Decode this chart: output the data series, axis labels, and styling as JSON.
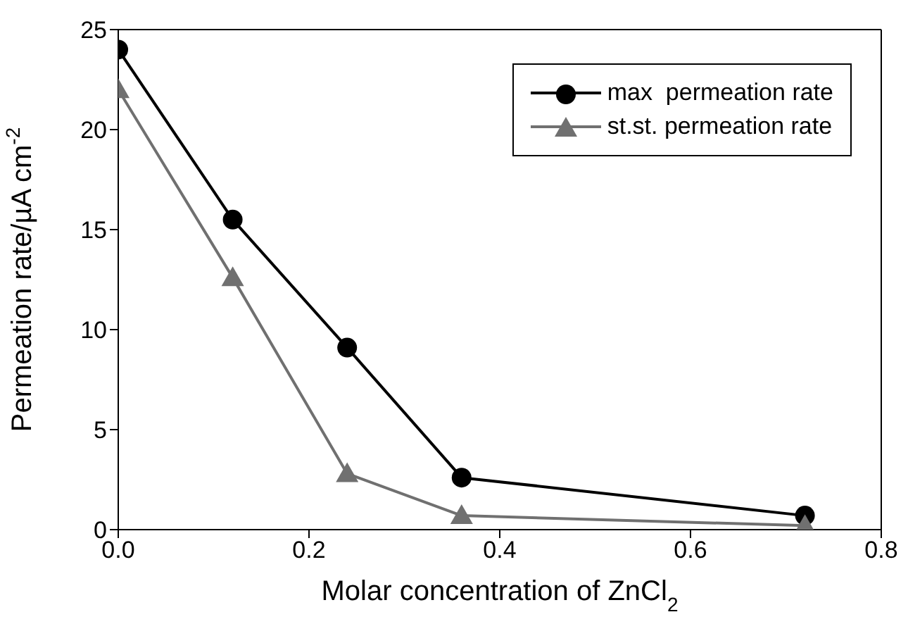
{
  "chart_data": {
    "type": "line",
    "xlabel": "Molar concentration of ZnCl$_{2}$",
    "ylabel": "Permeation rate/µA cm$^{-2}$",
    "x": [
      0,
      0.12,
      0.24,
      0.36,
      0.72
    ],
    "series": [
      {
        "name": "max  permeation rate",
        "color": "#000000",
        "marker": "circle",
        "values": [
          24,
          15.5,
          9.1,
          2.6,
          0.7
        ]
      },
      {
        "name": "st.st. permeation rate",
        "color": "#707070",
        "marker": "triangle",
        "values": [
          22,
          12.6,
          2.8,
          0.7,
          0.2
        ]
      }
    ],
    "xlim": [
      0,
      0.8
    ],
    "xticks": [
      {
        "value": 0,
        "label": "0.0"
      },
      0.2,
      0.4,
      0.6,
      0.8
    ],
    "ylim": [
      0,
      25
    ],
    "yticks": [
      0,
      5,
      10,
      15,
      20,
      25
    ],
    "grid": false,
    "legend": "top right",
    "line_style": "solid"
  }
}
